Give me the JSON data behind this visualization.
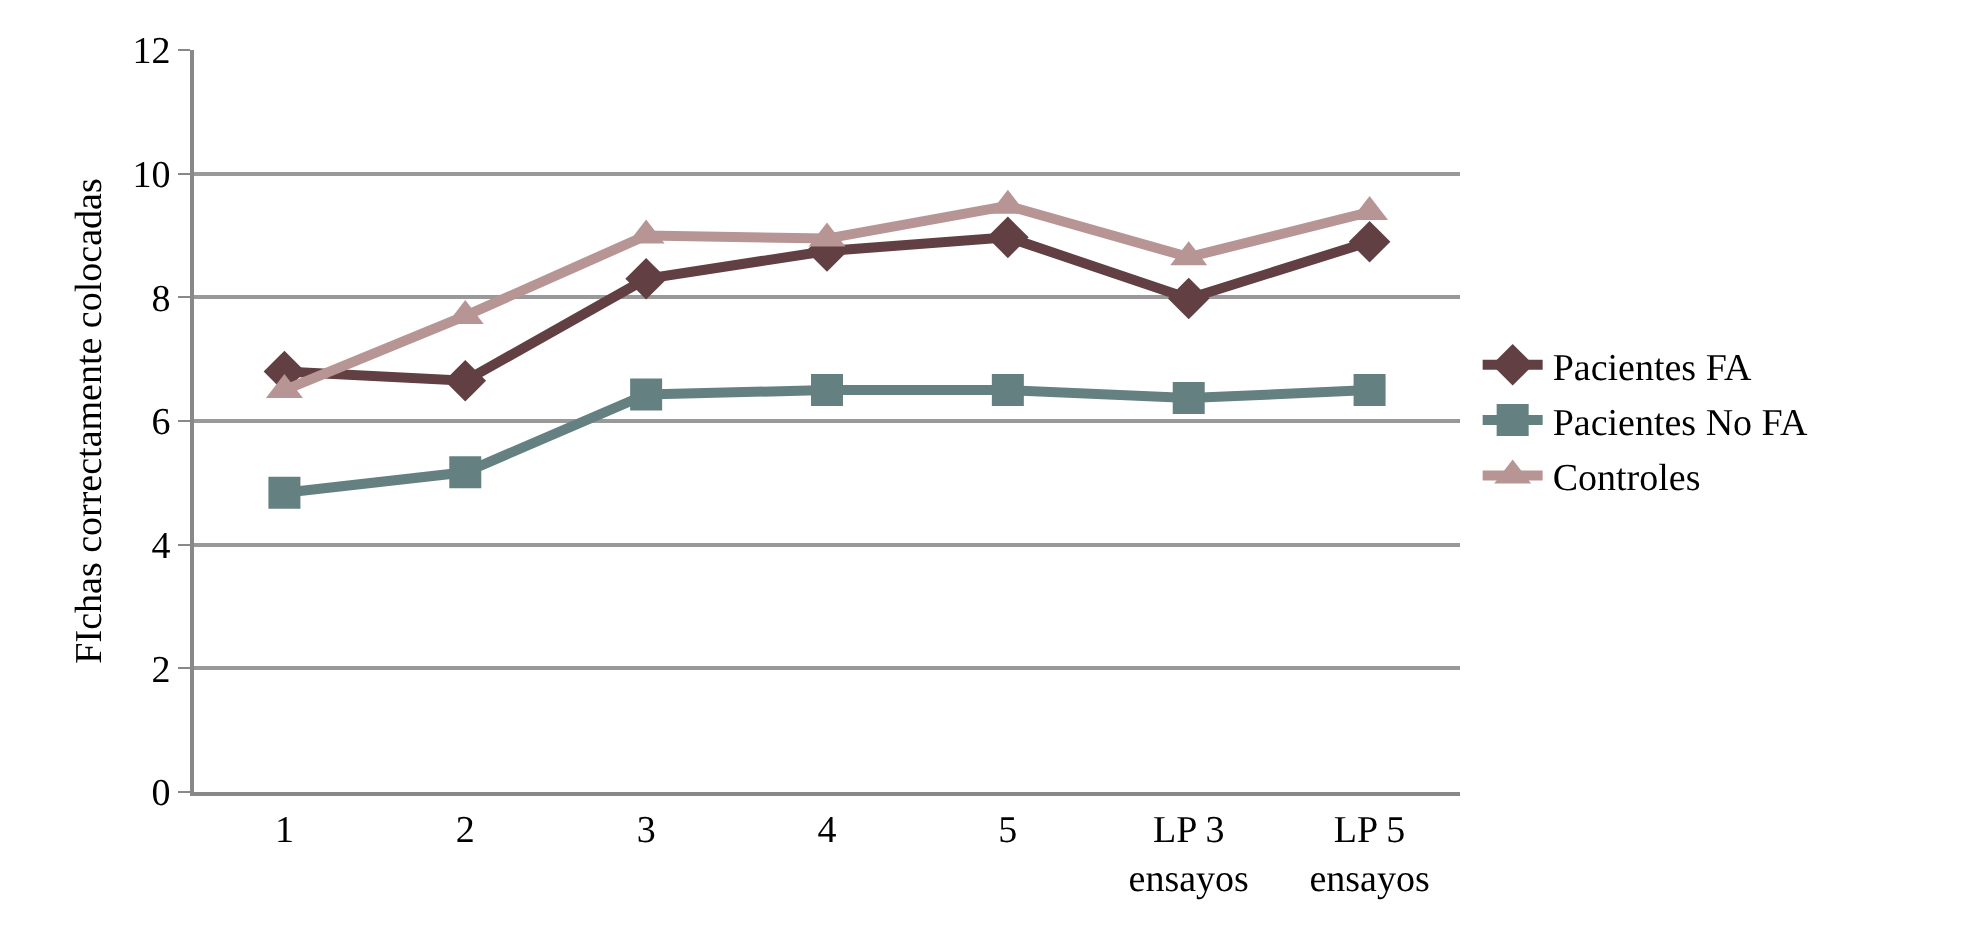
{
  "chart_data": {
    "type": "line",
    "ylabel": "FIchas correctamente colocadas",
    "categories": [
      "1",
      "2",
      "3",
      "4",
      "5",
      "LP 3 ensayos",
      "LP 5 ensayos"
    ],
    "series": [
      {
        "name": "Pacientes FA",
        "color": "#613f42",
        "marker": "diamond",
        "values": [
          6.8,
          6.65,
          8.3,
          8.75,
          8.97,
          7.98,
          8.9
        ]
      },
      {
        "name": "Pacientes No FA",
        "color": "#648080",
        "marker": "square",
        "values": [
          4.84,
          5.17,
          6.43,
          6.5,
          6.5,
          6.37,
          6.5
        ]
      },
      {
        "name": "Controles",
        "color": "#b89595",
        "marker": "triangle",
        "values": [
          6.5,
          7.7,
          9.0,
          8.95,
          9.48,
          8.65,
          9.38
        ]
      }
    ],
    "ylim": [
      0,
      12
    ],
    "yticks": [
      0,
      2,
      4,
      6,
      8,
      10,
      12
    ],
    "grid": "y",
    "legend": "right",
    "line_style": "solid"
  }
}
